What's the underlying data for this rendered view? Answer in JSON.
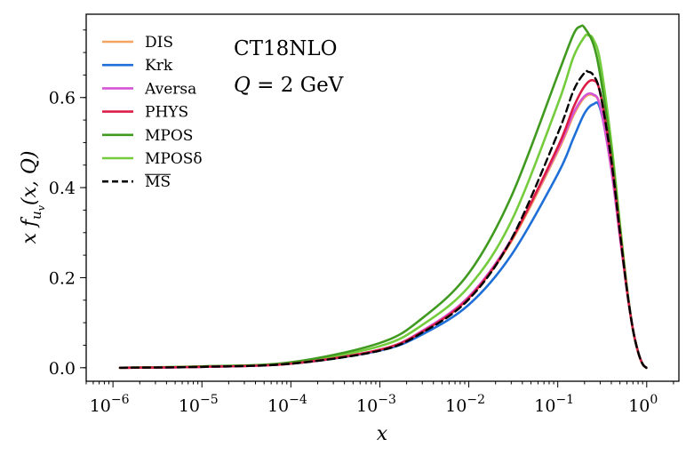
{
  "chart_data": {
    "type": "line",
    "xlabel": "x",
    "ylabel": "x f_{u_v}(x, Q)",
    "xscale": "log",
    "xlim": [
      5e-07,
      2.3
    ],
    "ylim": [
      -0.03,
      0.785
    ],
    "grid": false,
    "legend_position": "top-left",
    "x_ticks": [
      {
        "value": 1e-06,
        "base": "10",
        "exp": "−6"
      },
      {
        "value": 1e-05,
        "base": "10",
        "exp": "−5"
      },
      {
        "value": 0.0001,
        "base": "10",
        "exp": "−4"
      },
      {
        "value": 0.001,
        "base": "10",
        "exp": "−3"
      },
      {
        "value": 0.01,
        "base": "10",
        "exp": "−2"
      },
      {
        "value": 0.1,
        "base": "10",
        "exp": "−1"
      },
      {
        "value": 1,
        "base": "10",
        "exp": "0"
      }
    ],
    "y_ticks": [
      {
        "value": 0.0,
        "label": "0.0"
      },
      {
        "value": 0.2,
        "label": "0.2"
      },
      {
        "value": 0.4,
        "label": "0.4"
      },
      {
        "value": 0.6,
        "label": "0.6"
      }
    ],
    "annotations": [
      "CT18NLO",
      "Q = 2 GeV"
    ],
    "series": [
      {
        "name": "DIS",
        "color": "#f4a460",
        "dash": "solid",
        "x": [
          1.2e-06,
          1e-05,
          0.0001,
          0.001,
          0.003,
          0.01,
          0.03,
          0.1,
          0.15,
          0.2,
          0.25,
          0.3,
          0.4,
          0.5,
          0.6,
          0.7,
          0.8,
          0.9,
          0.99
        ],
        "y": [
          0.0,
          0.002,
          0.009,
          0.04,
          0.08,
          0.155,
          0.28,
          0.48,
          0.56,
          0.6,
          0.605,
          0.58,
          0.44,
          0.29,
          0.17,
          0.085,
          0.035,
          0.008,
          0.0
        ]
      },
      {
        "name": "Krk",
        "color": "#1f6fd8",
        "dash": "solid",
        "x": [
          1.2e-06,
          1e-05,
          0.0001,
          0.001,
          0.003,
          0.01,
          0.03,
          0.1,
          0.15,
          0.2,
          0.25,
          0.3,
          0.4,
          0.5,
          0.6,
          0.7,
          0.8,
          0.9,
          0.99
        ],
        "y": [
          0.0,
          0.002,
          0.009,
          0.038,
          0.074,
          0.14,
          0.25,
          0.43,
          0.51,
          0.565,
          0.585,
          0.575,
          0.45,
          0.3,
          0.175,
          0.085,
          0.035,
          0.008,
          0.0
        ]
      },
      {
        "name": "Aversa",
        "color": "#d654d6",
        "dash": "solid",
        "x": [
          1.2e-06,
          1e-05,
          0.0001,
          0.001,
          0.003,
          0.01,
          0.03,
          0.1,
          0.15,
          0.2,
          0.25,
          0.3,
          0.4,
          0.5,
          0.6,
          0.7,
          0.8,
          0.9,
          0.99
        ],
        "y": [
          0.0,
          0.002,
          0.009,
          0.04,
          0.082,
          0.158,
          0.285,
          0.485,
          0.565,
          0.603,
          0.607,
          0.58,
          0.44,
          0.29,
          0.17,
          0.085,
          0.035,
          0.008,
          0.0
        ]
      },
      {
        "name": "PHYS",
        "color": "#dc1e46",
        "dash": "solid",
        "x": [
          1.2e-06,
          1e-05,
          0.0001,
          0.001,
          0.003,
          0.01,
          0.03,
          0.1,
          0.15,
          0.2,
          0.25,
          0.3,
          0.4,
          0.5,
          0.6,
          0.7,
          0.8,
          0.9,
          0.99
        ],
        "y": [
          0.0,
          0.002,
          0.009,
          0.04,
          0.08,
          0.155,
          0.283,
          0.49,
          0.578,
          0.625,
          0.638,
          0.61,
          0.46,
          0.3,
          0.172,
          0.085,
          0.035,
          0.008,
          0.0
        ]
      },
      {
        "name": "MPOS",
        "color": "#3f9a1f",
        "dash": "solid",
        "x": [
          1.2e-06,
          1e-05,
          0.0001,
          0.001,
          0.003,
          0.01,
          0.03,
          0.1,
          0.15,
          0.18,
          0.2,
          0.25,
          0.3,
          0.4,
          0.5,
          0.6,
          0.7,
          0.8,
          0.9,
          0.99
        ],
        "y": [
          0.0,
          0.003,
          0.012,
          0.055,
          0.11,
          0.21,
          0.38,
          0.65,
          0.74,
          0.758,
          0.755,
          0.72,
          0.65,
          0.48,
          0.31,
          0.175,
          0.085,
          0.035,
          0.008,
          0.0
        ]
      },
      {
        "name": "MPOSδ",
        "color": "#74cc3c",
        "dash": "solid",
        "x": [
          1.2e-06,
          1e-05,
          0.0001,
          0.001,
          0.003,
          0.01,
          0.03,
          0.1,
          0.15,
          0.2,
          0.22,
          0.25,
          0.3,
          0.4,
          0.5,
          0.6,
          0.7,
          0.8,
          0.9,
          0.99
        ],
        "y": [
          0.0,
          0.003,
          0.011,
          0.048,
          0.095,
          0.18,
          0.325,
          0.585,
          0.69,
          0.735,
          0.738,
          0.73,
          0.68,
          0.5,
          0.32,
          0.178,
          0.085,
          0.035,
          0.008,
          0.0
        ]
      },
      {
        "name": "MS",
        "color": "#000000",
        "dash": "dashed",
        "overline": true,
        "x": [
          1.2e-06,
          1e-05,
          0.0001,
          0.001,
          0.003,
          0.01,
          0.03,
          0.1,
          0.15,
          0.2,
          0.22,
          0.25,
          0.3,
          0.4,
          0.5,
          0.6,
          0.7,
          0.8,
          0.9,
          0.99
        ],
        "y": [
          0.0,
          0.002,
          0.009,
          0.038,
          0.078,
          0.152,
          0.285,
          0.52,
          0.615,
          0.655,
          0.657,
          0.65,
          0.61,
          0.46,
          0.3,
          0.172,
          0.085,
          0.035,
          0.008,
          0.0
        ]
      }
    ]
  }
}
